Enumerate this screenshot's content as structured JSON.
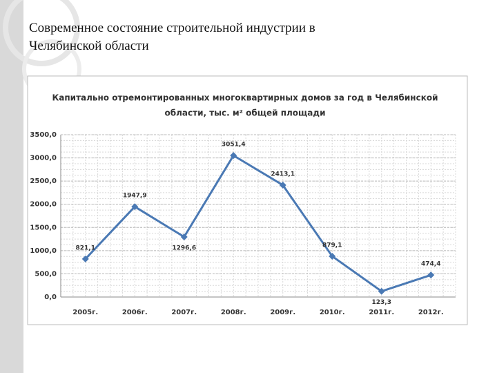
{
  "slide": {
    "title": "Современное состояние строительной индустрии в Челябинской области"
  },
  "chart_data": {
    "type": "line",
    "title": [
      "Капитально отремонтированных многоквартирных домов за год в Челябинской",
      "области, тыс. м² общей площади"
    ],
    "categories": [
      "2005г.",
      "2006г.",
      "2007г.",
      "2008г.",
      "2009г.",
      "2010г.",
      "2011г.",
      "2012г."
    ],
    "series": [
      {
        "color": "#4a79b4",
        "values": [
          821.1,
          1947.9,
          1296.6,
          3051.4,
          2413.1,
          879.1,
          123.3,
          474.4
        ],
        "value_labels": [
          "821,1",
          "1947,9",
          "1296,6",
          "3051,4",
          "2413,1",
          "879,1",
          "123,3",
          "474,4"
        ]
      }
    ],
    "ylim": [
      0,
      3500
    ],
    "yticks": [
      {
        "value": 0,
        "label": "0,0"
      },
      {
        "value": 500,
        "label": "500,0"
      },
      {
        "value": 1000,
        "label": "1000,0"
      },
      {
        "value": 1500,
        "label": "1500,0"
      },
      {
        "value": 2000,
        "label": "2000,0"
      },
      {
        "value": 2500,
        "label": "2500,0"
      },
      {
        "value": 3000,
        "label": "3000,0"
      },
      {
        "value": 3500,
        "label": "3500,0"
      }
    ],
    "grid": true
  }
}
